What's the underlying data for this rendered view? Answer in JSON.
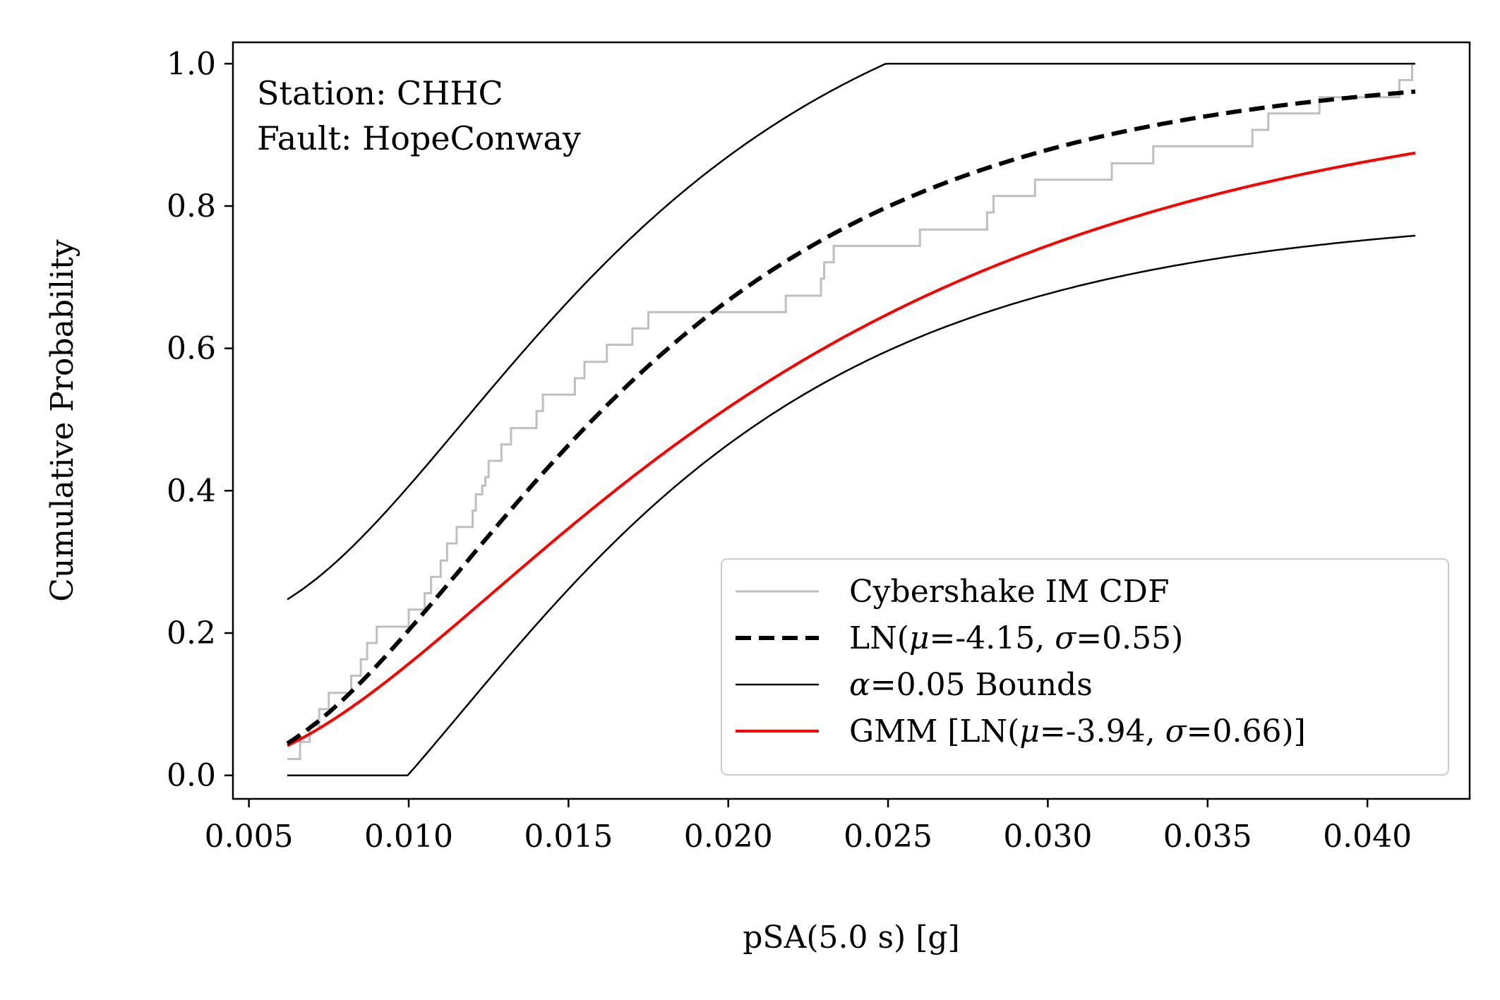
{
  "chart_data": {
    "type": "line",
    "xlabel": "pSA(5.0 s) [g]",
    "ylabel": "Cumulative Probability",
    "xlim": [
      0.0045,
      0.0432
    ],
    "ylim": [
      -0.033,
      1.03
    ],
    "xticks": [
      0.005,
      0.01,
      0.015,
      0.02,
      0.025,
      0.03,
      0.035,
      0.04
    ],
    "xtick_labels": [
      "0.005",
      "0.010",
      "0.015",
      "0.020",
      "0.025",
      "0.030",
      "0.035",
      "0.040"
    ],
    "yticks": [
      0.0,
      0.2,
      0.4,
      0.6,
      0.8,
      1.0
    ],
    "ytick_labels": [
      "0.0",
      "0.2",
      "0.4",
      "0.6",
      "0.8",
      "1.0"
    ],
    "grid": false,
    "legend_position": "lower-right",
    "annotation": [
      "Station: CHHC",
      "Fault: HopeConway"
    ],
    "series": [
      {
        "name": "Cybershake IM CDF",
        "style": "step",
        "color": "#bfbfbf",
        "x": [
          0.0062,
          0.0066,
          0.0069,
          0.0072,
          0.0075,
          0.0082,
          0.0085,
          0.0087,
          0.009,
          0.0092,
          0.01,
          0.0105,
          0.0107,
          0.011,
          0.0112,
          0.0115,
          0.012,
          0.0121,
          0.0123,
          0.0124,
          0.0125,
          0.0127,
          0.0129,
          0.013,
          0.0132,
          0.0134,
          0.014,
          0.0142,
          0.0145,
          0.0152,
          0.0155,
          0.0158,
          0.0162,
          0.0164,
          0.017,
          0.0172,
          0.0175,
          0.0178,
          0.018,
          0.0218,
          0.0228,
          0.0229,
          0.023,
          0.0233,
          0.0236,
          0.0238,
          0.026,
          0.0265,
          0.0281,
          0.0283,
          0.029,
          0.0296,
          0.0298,
          0.032,
          0.0322,
          0.0333,
          0.0335,
          0.0364,
          0.0369,
          0.0385,
          0.0388,
          0.041,
          0.0414,
          0.0415
        ],
        "y": [
          0.023,
          0.047,
          0.07,
          0.093,
          0.116,
          0.14,
          0.163,
          0.186,
          0.209,
          0.209,
          0.233,
          0.256,
          0.279,
          0.302,
          0.326,
          0.349,
          0.372,
          0.395,
          0.407,
          0.419,
          0.442,
          0.442,
          0.465,
          0.465,
          0.488,
          0.488,
          0.512,
          0.535,
          0.535,
          0.558,
          0.581,
          0.581,
          0.605,
          0.605,
          0.628,
          0.628,
          0.651,
          0.651,
          0.651,
          0.674,
          0.674,
          0.698,
          0.721,
          0.744,
          0.744,
          0.744,
          0.767,
          0.767,
          0.791,
          0.814,
          0.814,
          0.837,
          0.837,
          0.86,
          0.86,
          0.884,
          0.884,
          0.907,
          0.93,
          0.953,
          0.953,
          0.977,
          1.0,
          1.0
        ]
      },
      {
        "name": "LN(μ=-4.15, σ=0.55)",
        "label_parts": [
          "LN(",
          "μ",
          "=-4.15, ",
          "σ",
          "=0.55)"
        ],
        "style": "dashed",
        "color": "#000000",
        "mu": -4.15,
        "sigma": 0.55
      },
      {
        "name": "α=0.05 Bounds",
        "label_parts": [
          "",
          "α",
          "=0.05 Bounds"
        ],
        "style": "solid-thin",
        "color": "#000000",
        "ks_d": 0.2024,
        "mu": -4.15,
        "sigma": 0.55
      },
      {
        "name": "GMM [LN(μ=-3.94, σ=0.66)]",
        "label_parts": [
          "GMM [LN(",
          "μ",
          "=-3.94, ",
          "σ",
          "=0.66)]"
        ],
        "style": "solid",
        "color": "#ff0000",
        "mu": -3.94,
        "sigma": 0.66
      }
    ],
    "x_range": [
      0.0062,
      0.0415
    ]
  }
}
